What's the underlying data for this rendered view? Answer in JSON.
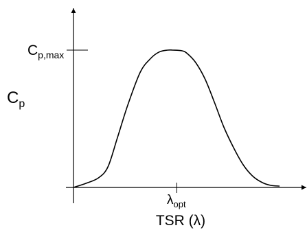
{
  "chart_data": {
    "type": "line",
    "title": "",
    "xlabel": "TSR (λ)",
    "ylabel": {
      "base": "C",
      "sub": "p"
    },
    "ymax_tick": {
      "base": "C",
      "sub": "p,max"
    },
    "xopt_tick": {
      "base": "λ",
      "sub": "opt"
    },
    "xlim": [
      0,
      10
    ],
    "ylim": [
      0,
      1.1
    ],
    "x_opt": 4.95,
    "y_max": 1.0,
    "grid": false,
    "legend": "none",
    "colors": {
      "line": "#000000",
      "axis": "#000000",
      "background": "#ffffff"
    },
    "series": [
      {
        "x": [
          0.0,
          0.6,
          1.2,
          1.65,
          2.1,
          2.6,
          3.2,
          3.7,
          4.1,
          4.5,
          4.75,
          5.2,
          5.45,
          5.85,
          6.3,
          6.75,
          7.2,
          7.7,
          8.15,
          8.6,
          9.05,
          9.45,
          9.85
        ],
        "y": [
          0.0,
          0.03,
          0.07,
          0.15,
          0.36,
          0.6,
          0.84,
          0.94,
          0.986,
          1.0,
          1.0,
          0.995,
          0.975,
          0.91,
          0.79,
          0.62,
          0.44,
          0.28,
          0.16,
          0.08,
          0.035,
          0.015,
          0.01
        ]
      }
    ]
  }
}
